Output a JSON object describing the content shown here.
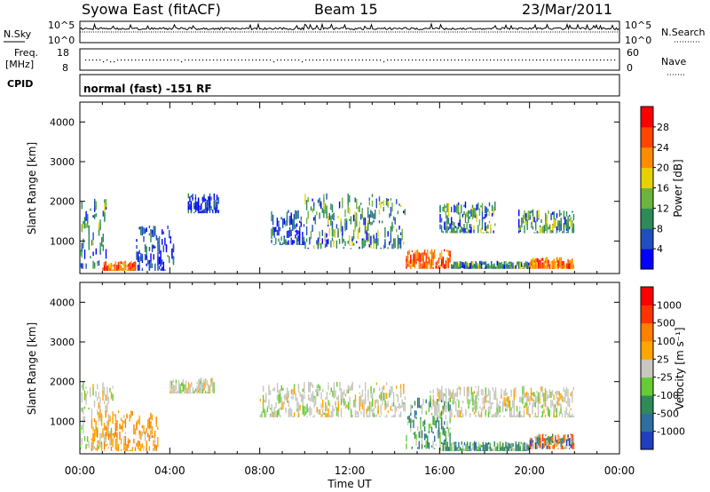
{
  "header": {
    "station": "Syowa East (fitACF)",
    "beam": "Beam 15",
    "date": "23/Mar/2011"
  },
  "param_panels": {
    "nsky_label": "N.Sky",
    "nsearch_label": "N.Search",
    "nsky_ticks": [
      "10^5",
      "10^0"
    ],
    "nsearch_ticks": [
      "10^5",
      "10^0"
    ],
    "freq_label": "Freq.",
    "freq_unit": "[MHz]",
    "freq_ticks": [
      "18",
      "8"
    ],
    "nave_label": "Nave",
    "nave_ticks": [
      "60",
      "0"
    ],
    "cpid_label": "CPID",
    "cpid_text": "normal (fast) -151 RF"
  },
  "chart_data": [
    {
      "type": "heatmap",
      "name": "power",
      "ylabel": "Slant Range [km]",
      "xlabel": "",
      "ylim": [
        180,
        4500
      ],
      "y_ticks": [
        "1000",
        "2000",
        "3000",
        "4000"
      ],
      "y_tick_values": [
        1000,
        2000,
        3000,
        4000
      ],
      "xlim": [
        0,
        24
      ],
      "colorbar_label": "Power [dB]",
      "colorbar_ticks": [
        "4",
        "8",
        "12",
        "16",
        "20",
        "24",
        "28"
      ],
      "colorbar_colors": [
        "#0000ff",
        "#1f4fbf",
        "#2e8b57",
        "#6db33f",
        "#e6d200",
        "#ff8c00",
        "#ff4500",
        "#ff0000"
      ],
      "echo_regions": [
        {
          "t": [
            0.0,
            1.2
          ],
          "r": [
            300,
            2100
          ],
          "level": "mid"
        },
        {
          "t": [
            1.0,
            2.5
          ],
          "r": [
            250,
            500
          ],
          "level": "high"
        },
        {
          "t": [
            2.5,
            4.2
          ],
          "r": [
            250,
            1400
          ],
          "level": "low"
        },
        {
          "t": [
            4.8,
            6.2
          ],
          "r": [
            1700,
            2200
          ],
          "level": "low"
        },
        {
          "t": [
            8.5,
            10.0
          ],
          "r": [
            900,
            1800
          ],
          "level": "low"
        },
        {
          "t": [
            10.0,
            14.5
          ],
          "r": [
            800,
            2200
          ],
          "level": "mid"
        },
        {
          "t": [
            14.5,
            16.5
          ],
          "r": [
            300,
            800
          ],
          "level": "high"
        },
        {
          "t": [
            16.0,
            18.5
          ],
          "r": [
            1200,
            2000
          ],
          "level": "mid"
        },
        {
          "t": [
            16.5,
            20.0
          ],
          "r": [
            300,
            500
          ],
          "level": "mid"
        },
        {
          "t": [
            20.0,
            22.0
          ],
          "r": [
            300,
            600
          ],
          "level": "high"
        },
        {
          "t": [
            19.5,
            22.0
          ],
          "r": [
            1200,
            1800
          ],
          "level": "mid"
        }
      ]
    },
    {
      "type": "heatmap",
      "name": "velocity",
      "ylabel": "Slant Range [km]",
      "xlabel": "Time UT",
      "ylim": [
        180,
        4500
      ],
      "y_ticks": [
        "1000",
        "2000",
        "3000",
        "4000"
      ],
      "y_tick_values": [
        1000,
        2000,
        3000,
        4000
      ],
      "xlim": [
        0,
        24
      ],
      "x_ticks": [
        "00:00",
        "04:00",
        "08:00",
        "12:00",
        "16:00",
        "20:00",
        "00:00"
      ],
      "x_tick_values": [
        0,
        4,
        8,
        12,
        16,
        20,
        24
      ],
      "colorbar_label": "Velocity [m s⁻¹]",
      "colorbar_ticks": [
        "1000",
        "500",
        "100",
        "25",
        "-25",
        "-100",
        "-500",
        "-1000"
      ],
      "colorbar_colors": [
        "#1f3fbf",
        "#2e6f9f",
        "#2e8b57",
        "#66cc33",
        "#c8c8c0",
        "#ffa500",
        "#ff7f00",
        "#ff3300",
        "#ff0000"
      ],
      "echo_regions": [
        {
          "t": [
            0.0,
            1.5
          ],
          "r": [
            300,
            2000
          ],
          "level": "grey"
        },
        {
          "t": [
            0.5,
            3.5
          ],
          "r": [
            250,
            1300
          ],
          "level": "orange"
        },
        {
          "t": [
            4.0,
            6.0
          ],
          "r": [
            1700,
            2100
          ],
          "level": "grey"
        },
        {
          "t": [
            8.0,
            14.5
          ],
          "r": [
            1100,
            2000
          ],
          "level": "grey"
        },
        {
          "t": [
            14.5,
            16.5
          ],
          "r": [
            300,
            1600
          ],
          "level": "green"
        },
        {
          "t": [
            16.0,
            20.0
          ],
          "r": [
            250,
            500
          ],
          "level": "green"
        },
        {
          "t": [
            15.5,
            22.0
          ],
          "r": [
            1100,
            1900
          ],
          "level": "grey"
        },
        {
          "t": [
            20.0,
            22.0
          ],
          "r": [
            300,
            700
          ],
          "level": "mixed"
        }
      ]
    }
  ]
}
